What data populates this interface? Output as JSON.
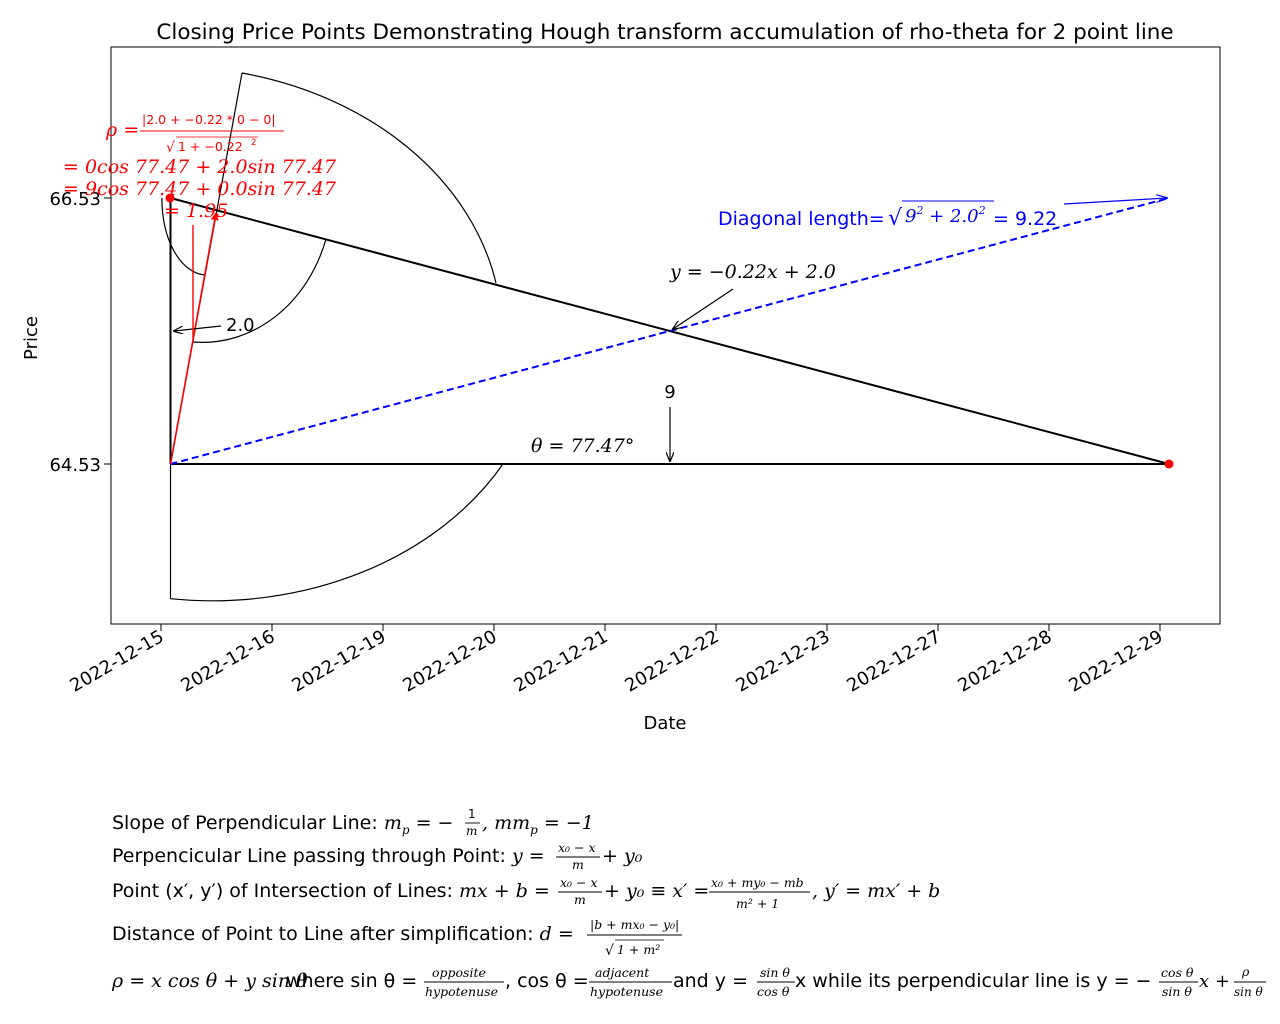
{
  "chart_data": {
    "type": "line",
    "title": "Closing Price Points Demonstrating Hough transform accumulation of rho-theta for 2 point line",
    "xlabel": "Date",
    "ylabel": "Price",
    "x_tick_labels": [
      "2022-12-15",
      "2022-12-16",
      "2022-12-19",
      "2022-12-20",
      "2022-12-21",
      "2022-12-22",
      "2022-12-23",
      "2022-12-27",
      "2022-12-28",
      "2022-12-29"
    ],
    "y_tick_labels": [
      "66.53",
      "64.53"
    ],
    "points": [
      {
        "x": "2022-12-15",
        "y": 66.53
      },
      {
        "x": "2022-12-29",
        "y": 64.53
      }
    ],
    "series": [
      {
        "name": "Diagonal length",
        "color": "#0000ff",
        "style": "dashed"
      }
    ],
    "annotations": {
      "line_label": "y = −0.22x + 2.0",
      "diagonal_prefix": "Diagonal length=",
      "diagonal_value": " = 9.22",
      "rho_prefix": "ρ =",
      "rho_num": "|2.0 + −0.22 * 0 − 0|",
      "rho_den": "1 + −0.22",
      "rho_line1": "= 0cos 77.47 + 2.0sin 77.47",
      "rho_line2": "= 9cos 77.47 + 0.0sin 77.47",
      "rho_line3": "= 1.95",
      "height_label": "2.0",
      "width_label": "9",
      "theta_label": "θ = 77.47°"
    },
    "colors": {
      "points": "#ff0000",
      "diagonal": "#0000ff",
      "rho": "#ff0000",
      "lines": "#000000"
    }
  },
  "notes": {
    "slope": {
      "prefix": "Slope of Perpendicular Line: ",
      "eq1": "m",
      "eq2": " = −",
      "eq3": ", mm",
      "eq4": " = −1"
    },
    "perp": {
      "prefix": "Perpencicular Line passing through Point: ",
      "eq1": "y = ",
      "num": "x₀ − x",
      "den": "m",
      "eq2": " + y₀"
    },
    "intersect": {
      "prefix": "Point (x′, y′) of Intersection of Lines: ",
      "eq1": "mx + b = ",
      "num1": "x₀ − x",
      "den1": "m",
      "eq2": " + y₀ ≡ x′ = ",
      "num2": "x₀ + my₀ − mb",
      "den2": "m² + 1",
      "eq3": ", y′ = mx′ + b"
    },
    "distance": {
      "prefix": "Distance of Point to Line after simplification: ",
      "eq1": "d = ",
      "num": "|b + mx₀ − y₀|",
      "den": "1 + m²"
    },
    "rho": {
      "eq1": "ρ = x cos θ + y sin θ",
      "mid1": " where sin θ = ",
      "num1": "opposite",
      "den1": "hypotenuse",
      "mid2": ", cos θ = ",
      "num2": "adjacent",
      "den2": "hypotenuse",
      "mid3": " and y = ",
      "num3": "sin θ",
      "den3": "cos θ",
      "mid4": "x while its perpendicular line is y = −",
      "num4": "cos θ",
      "den4": "sin θ",
      "mid5": "x + ",
      "num5": "ρ",
      "den5": "sin θ"
    }
  }
}
